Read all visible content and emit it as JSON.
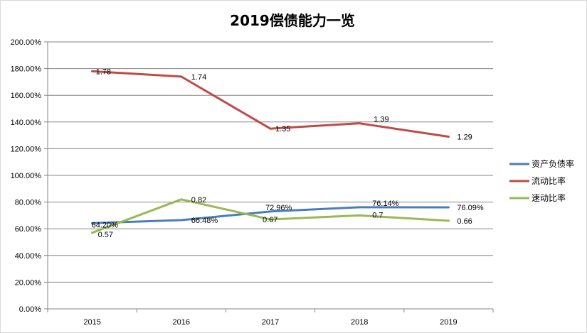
{
  "chart_data": {
    "type": "line",
    "title": "2019偿债能力一览",
    "xlabel": "",
    "ylabel": "",
    "categories": [
      "2015",
      "2016",
      "2017",
      "2018",
      "2019"
    ],
    "ylim": [
      0,
      2
    ],
    "y_ticks": [
      "0.00%",
      "20.00%",
      "40.00%",
      "60.00%",
      "80.00%",
      "100.00%",
      "120.00%",
      "140.00%",
      "160.00%",
      "180.00%",
      "200.00%"
    ],
    "grid": true,
    "legend_position": "right",
    "series": [
      {
        "name": "资产负债率",
        "color": "#4a7ebb",
        "values": [
          0.642,
          0.6648,
          0.7296,
          0.7614,
          0.7609
        ],
        "labels": [
          "64.20%",
          "66.48%",
          "72.96%",
          "76.14%",
          "76.09%"
        ]
      },
      {
        "name": "流动比率",
        "color": "#be4b48",
        "values": [
          1.78,
          1.74,
          1.35,
          1.39,
          1.29
        ],
        "labels": [
          "1.78",
          "1.74",
          "1.35",
          "1.39",
          "1.29"
        ]
      },
      {
        "name": "速动比率",
        "color": "#98b954",
        "values": [
          0.57,
          0.82,
          0.67,
          0.7,
          0.66
        ],
        "labels": [
          "0.57",
          "0.82",
          "0.67",
          "0.7",
          "0.66"
        ]
      }
    ]
  }
}
